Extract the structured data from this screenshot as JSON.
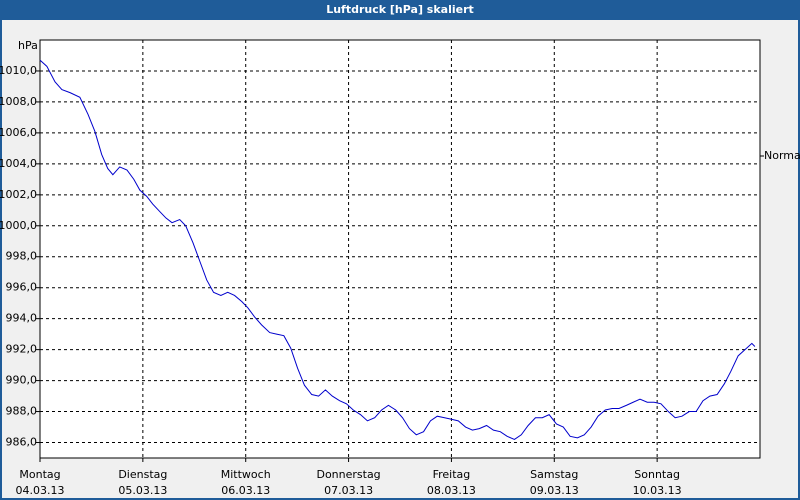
{
  "chart_data": {
    "type": "line",
    "title": "Luftdruck [hPa] skaliert",
    "y_label": "hPa",
    "annotation": "Normal",
    "color": "#0000cc",
    "grid": true,
    "xlim": [
      0,
      168
    ],
    "xticks": [
      {
        "value": 0,
        "label": "Montag"
      },
      {
        "value": 24,
        "label": "Dienstag"
      },
      {
        "value": 48,
        "label": "Mittwoch"
      },
      {
        "value": 72,
        "label": "Donnerstag"
      },
      {
        "value": 96,
        "label": "Freitag"
      },
      {
        "value": 120,
        "label": "Samstag"
      },
      {
        "value": 144,
        "label": "Sonntag"
      }
    ],
    "xtick_dates": [
      "04.03.13",
      "05.03.13",
      "06.03.13",
      "07.03.13",
      "08.03.13",
      "09.03.13",
      "10.03.13"
    ],
    "ylim": [
      985,
      1012
    ],
    "yticks": [
      {
        "value": 986,
        "label": "986,0"
      },
      {
        "value": 988,
        "label": "988,0"
      },
      {
        "value": 990,
        "label": "990,0"
      },
      {
        "value": 992,
        "label": "992,0"
      },
      {
        "value": 994,
        "label": "994,0"
      },
      {
        "value": 996,
        "label": "996,0"
      },
      {
        "value": 998,
        "label": "998,0"
      },
      {
        "value": 1000,
        "label": "1000,0"
      },
      {
        "value": 1002,
        "label": "1002,0"
      },
      {
        "value": 1004,
        "label": "1004,0"
      },
      {
        "value": 1006,
        "label": "1006,0"
      },
      {
        "value": 1008,
        "label": "1008,0"
      },
      {
        "value": 1010,
        "label": "1010,0"
      }
    ],
    "x": [
      0,
      1.6,
      3.5,
      5.1,
      7.0,
      9.3,
      11.2,
      12.8,
      14.4,
      15.8,
      17.0,
      18.6,
      20.3,
      21.9,
      23.3,
      24.9,
      26.3,
      28.0,
      29.4,
      30.8,
      32.6,
      34.0,
      35.7,
      37.3,
      38.9,
      40.5,
      42.2,
      43.8,
      45.4,
      47.1,
      48.5,
      50.1,
      51.7,
      53.6,
      55.2,
      56.9,
      58.5,
      60.1,
      61.7,
      63.4,
      65.0,
      66.6,
      68.2,
      69.9,
      71.5,
      73.1,
      74.8,
      76.4,
      78.1,
      79.7,
      81.3,
      83.0,
      84.6,
      86.2,
      87.8,
      89.5,
      91.1,
      92.7,
      94.4,
      96.0,
      97.6,
      99.3,
      100.9,
      102.5,
      104.2,
      105.8,
      107.4,
      109.0,
      110.7,
      112.3,
      113.9,
      115.6,
      117.2,
      118.8,
      120.5,
      122.1,
      123.7,
      125.4,
      127.0,
      128.6,
      130.2,
      131.9,
      133.5,
      135.1,
      136.8,
      138.4,
      140.0,
      141.7,
      143.3,
      144.9,
      146.6,
      148.2,
      149.8,
      151.5,
      153.1,
      154.7,
      156.3,
      158.0,
      159.7,
      161.2,
      162.9,
      164.5,
      166.1,
      166.8
    ],
    "values": [
      1010.7,
      1010.3,
      1009.3,
      1008.8,
      1008.6,
      1008.3,
      1007.2,
      1006.1,
      1004.6,
      1003.7,
      1003.3,
      1003.8,
      1003.6,
      1003.0,
      1002.3,
      1001.9,
      1001.4,
      1000.9,
      1000.5,
      1000.2,
      1000.4,
      1000.0,
      998.9,
      997.7,
      996.5,
      995.7,
      995.5,
      995.7,
      995.5,
      995.1,
      994.7,
      994.1,
      993.6,
      993.1,
      993.0,
      992.9,
      992.1,
      990.8,
      989.7,
      989.1,
      989.0,
      989.4,
      989.0,
      988.7,
      988.5,
      988.1,
      987.8,
      987.4,
      987.6,
      988.1,
      988.4,
      988.1,
      987.6,
      986.9,
      986.5,
      986.7,
      987.4,
      987.7,
      987.6,
      987.5,
      987.4,
      987.0,
      986.8,
      986.9,
      987.1,
      986.8,
      986.7,
      986.4,
      986.2,
      986.5,
      987.1,
      987.6,
      987.6,
      987.8,
      987.2,
      987.0,
      986.4,
      986.3,
      986.5,
      987.0,
      987.7,
      988.1,
      988.2,
      988.2,
      988.4,
      988.6,
      988.8,
      988.6,
      988.6,
      988.5,
      988.0,
      987.6,
      987.7,
      988.0,
      988.0,
      988.7,
      989.0,
      989.1,
      989.8,
      990.6,
      991.6,
      992.0,
      992.4,
      992.2
    ]
  }
}
